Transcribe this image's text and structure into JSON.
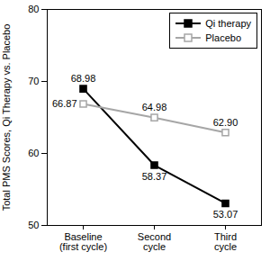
{
  "chart_data": {
    "type": "line",
    "y_label": "Total PMS Scores, Qi Therapy vs. Placebo",
    "categories": [
      "Baseline\n(first cycle)",
      "Second\ncycle",
      "Third\ncycle"
    ],
    "series": [
      {
        "name": "Qi therapy",
        "color": "#000000",
        "marker": "square",
        "values": [
          68.98,
          58.37,
          53.07
        ]
      },
      {
        "name": "Placebo",
        "color": "#a6a6a6",
        "marker": "open-square",
        "values": [
          66.87,
          64.98,
          62.9
        ],
        "value_labels": [
          "66.87",
          "64.98",
          "62.90"
        ]
      }
    ],
    "ylim": [
      50,
      80
    ],
    "yticks": [
      50,
      60,
      70,
      80
    ],
    "grid": false,
    "legend": "top-right",
    "data_labels": true
  }
}
